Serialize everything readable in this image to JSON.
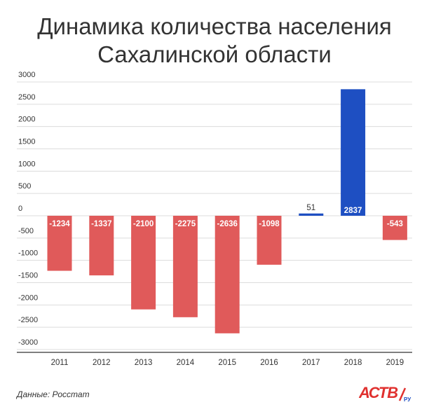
{
  "title_line1": "Динамика количества населения",
  "title_line2": "Сахалинской области",
  "source": "Данные: Росстат",
  "logo": {
    "text": "АСТВ",
    "suffix": "РУ",
    "icon": "astv-logo"
  },
  "colors": {
    "negative": "#e05a5a",
    "positive": "#1e4fc2",
    "grid": "#dcdcdc",
    "axis": "#333333"
  },
  "chart_data": {
    "type": "bar",
    "categories": [
      "2011",
      "2012",
      "2013",
      "2014",
      "2015",
      "2016",
      "2017",
      "2018",
      "2019"
    ],
    "values": [
      -1234,
      -1337,
      -2100,
      -2275,
      -2636,
      -1098,
      51,
      2837,
      -543
    ],
    "data_labels": [
      "-1234",
      "-1337",
      "-2100",
      "-2275",
      "-2636",
      "-1098",
      "51",
      "2837",
      "-543"
    ],
    "y_ticks": [
      3000,
      2500,
      2000,
      1500,
      1000,
      500,
      0,
      -500,
      -1000,
      -1500,
      -2000,
      -2500,
      -3000
    ],
    "ylim": [
      -3000,
      3000
    ],
    "grid": true
  }
}
